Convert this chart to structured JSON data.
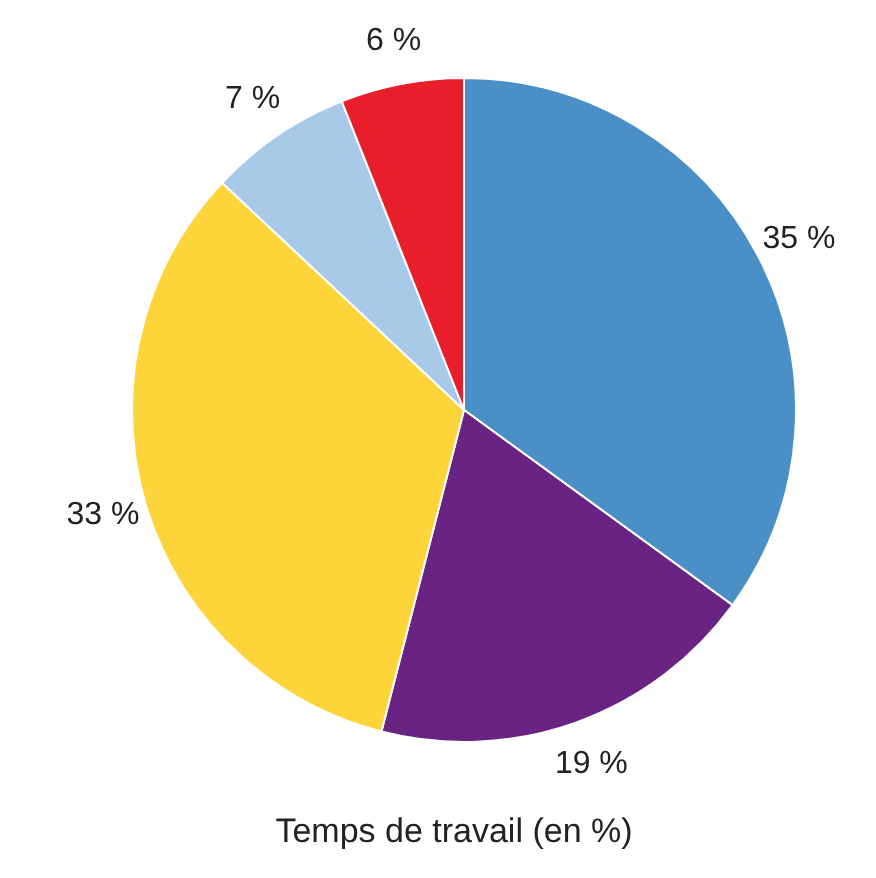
{
  "chart_data": {
    "type": "pie",
    "title": "Temps de travail (en %)",
    "categories": [
      null,
      null,
      null,
      null,
      null
    ],
    "values": [
      35,
      19,
      33,
      7,
      6
    ],
    "colors": [
      "#4a8fc6",
      "#692383",
      "#fdd43a",
      "#a8cae8",
      "#e81f2b"
    ],
    "value_labels": [
      "35 %",
      "19 %",
      "33 %",
      "7 %",
      "6 %"
    ],
    "legend": false
  }
}
